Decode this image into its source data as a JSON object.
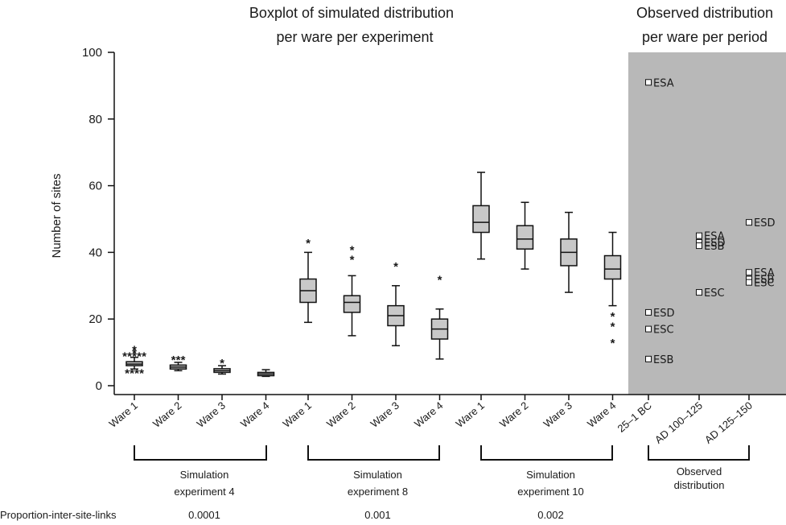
{
  "chart_data": {
    "type": "boxplot",
    "title_left": [
      "Boxplot of simulated distribution",
      "per ware per experiment"
    ],
    "title_right": [
      "Observed distribution",
      "per ware per period"
    ],
    "ylabel": "Number of sites",
    "ylim": [
      0,
      100
    ],
    "yticks": [
      0,
      20,
      40,
      60,
      80,
      100
    ],
    "groups": [
      {
        "label_lines": [
          "Simulation",
          "experiment  4"
        ],
        "proportion": "0.0001",
        "boxes": [
          {
            "category": "Ware 1",
            "whisker_low": 5,
            "q1": 6,
            "median": 6.5,
            "q3": 7.2,
            "whisker_high": 8.5,
            "outliers": [
              4,
              4,
              4,
              4,
              9,
              9,
              9,
              9,
              9,
              10,
              11
            ]
          },
          {
            "category": "Ware 2",
            "whisker_low": 4.5,
            "q1": 5,
            "median": 5.6,
            "q3": 6.2,
            "whisker_high": 7,
            "outliers": [
              8,
              8,
              8
            ]
          },
          {
            "category": "Ware 3",
            "whisker_low": 3.5,
            "q1": 4,
            "median": 4.5,
            "q3": 5.1,
            "whisker_high": 6,
            "outliers": [
              7
            ]
          },
          {
            "category": "Ware 4",
            "whisker_low": 2.8,
            "q1": 3,
            "median": 3.5,
            "q3": 4,
            "whisker_high": 4.8,
            "outliers": []
          }
        ]
      },
      {
        "label_lines": [
          "Simulation",
          "experiment 8"
        ],
        "proportion": "0.001",
        "boxes": [
          {
            "category": "Ware 1",
            "whisker_low": 19,
            "q1": 25,
            "median": 28.5,
            "q3": 32,
            "whisker_high": 40,
            "outliers": [
              43
            ]
          },
          {
            "category": "Ware 2",
            "whisker_low": 15,
            "q1": 22,
            "median": 25,
            "q3": 27,
            "whisker_high": 33,
            "outliers": [
              38,
              41
            ]
          },
          {
            "category": "Ware 3",
            "whisker_low": 12,
            "q1": 18,
            "median": 21,
            "q3": 24,
            "whisker_high": 30,
            "outliers": [
              36
            ]
          },
          {
            "category": "Ware 4",
            "whisker_low": 8,
            "q1": 14,
            "median": 17,
            "q3": 20,
            "whisker_high": 23,
            "outliers": [
              32
            ]
          }
        ]
      },
      {
        "label_lines": [
          "Simulation",
          "experiment 10"
        ],
        "proportion": "0.002",
        "boxes": [
          {
            "category": "Ware 1",
            "whisker_low": 38,
            "q1": 46,
            "median": 49,
            "q3": 54,
            "whisker_high": 64,
            "outliers": []
          },
          {
            "category": "Ware 2",
            "whisker_low": 35,
            "q1": 41,
            "median": 44,
            "q3": 48,
            "whisker_high": 55,
            "outliers": []
          },
          {
            "category": "Ware 3",
            "whisker_low": 28,
            "q1": 36,
            "median": 40,
            "q3": 44,
            "whisker_high": 52,
            "outliers": []
          },
          {
            "category": "Ware 4",
            "whisker_low": 24,
            "q1": 32,
            "median": 35,
            "q3": 39,
            "whisker_high": 46,
            "outliers": [
              13,
              18,
              21
            ]
          }
        ]
      }
    ],
    "observed": {
      "label_lines": [
        "Observed",
        "distribution"
      ],
      "background_color": "#b8b8b8",
      "periods": [
        {
          "category": "25–1 BC",
          "points": [
            {
              "label": "ESA",
              "value": 91
            },
            {
              "label": "ESD",
              "value": 22
            },
            {
              "label": "ESC",
              "value": 17
            },
            {
              "label": "ESB",
              "value": 8
            }
          ]
        },
        {
          "category": "AD 100–125",
          "points": [
            {
              "label": "ESA",
              "value": 45
            },
            {
              "label": "ESD",
              "value": 43
            },
            {
              "label": "ESB",
              "value": 42
            },
            {
              "label": "ESC",
              "value": 28
            }
          ]
        },
        {
          "category": "AD 125–150",
          "points": [
            {
              "label": "ESD",
              "value": 49
            },
            {
              "label": "ESA",
              "value": 34
            },
            {
              "label": "ESB",
              "value": 32
            },
            {
              "label": "ESC",
              "value": 31
            }
          ]
        }
      ]
    },
    "proportion_label": "Proportion-inter-site-links",
    "box_fill": "#c8c8c8"
  }
}
